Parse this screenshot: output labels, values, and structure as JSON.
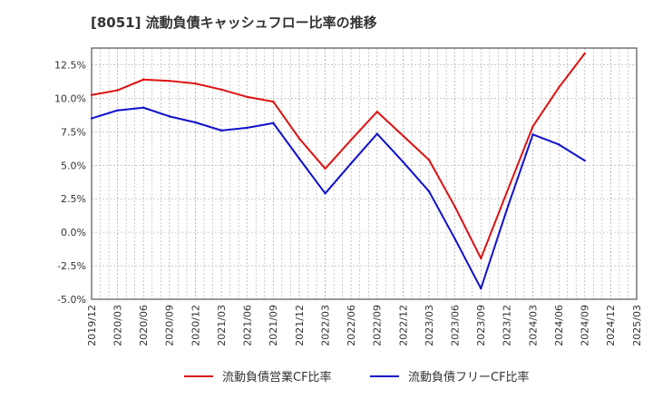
{
  "chart_data": {
    "type": "line",
    "title": "[8051]  流動負債キャッシュフロー比率の推移",
    "xlabel": "",
    "ylabel": "",
    "x": [
      "2019/12",
      "2020/03",
      "2020/06",
      "2020/09",
      "2020/12",
      "2021/03",
      "2021/06",
      "2021/09",
      "2021/12",
      "2022/03",
      "2022/06",
      "2022/09",
      "2022/12",
      "2023/03",
      "2023/06",
      "2023/09",
      "2023/12",
      "2024/03",
      "2024/06",
      "2024/09",
      "2024/12",
      "2025/03"
    ],
    "ylim": [
      -5.0,
      13.75
    ],
    "yticks": [
      -5.0,
      -2.5,
      0.0,
      2.5,
      5.0,
      7.5,
      10.0,
      12.5
    ],
    "ytick_labels": [
      "-5.0%",
      "-2.5%",
      "0.0%",
      "2.5%",
      "5.0%",
      "7.5%",
      "10.0%",
      "12.5%"
    ],
    "grid": true,
    "legend_position": "bottom",
    "series": [
      {
        "name": "流動負債営業CF比率",
        "color": "#dd1111",
        "values": [
          10.25,
          10.6,
          11.4,
          11.3,
          11.1,
          10.65,
          10.1,
          9.75,
          7.0,
          4.75,
          6.9,
          9.0,
          7.2,
          5.4,
          1.9,
          -1.95,
          3.0,
          7.9,
          10.8,
          13.35,
          null,
          null
        ]
      },
      {
        "name": "流動負債フリーCF比率",
        "color": "#1111cc",
        "values": [
          8.5,
          9.1,
          9.3,
          8.65,
          8.2,
          7.6,
          7.8,
          8.15,
          5.5,
          2.9,
          5.15,
          7.35,
          5.25,
          3.05,
          -0.5,
          -4.2,
          1.7,
          7.3,
          6.55,
          5.35,
          null,
          null
        ]
      }
    ]
  }
}
